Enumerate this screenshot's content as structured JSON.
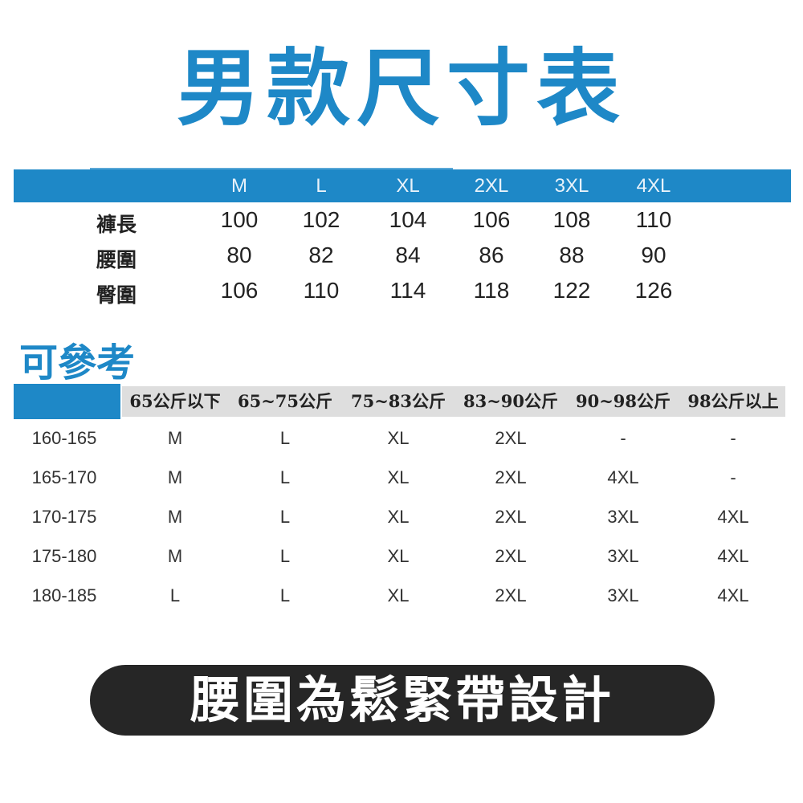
{
  "title": "男款尺寸表",
  "size_table": {
    "sizes": [
      "M",
      "L",
      "XL",
      "2XL",
      "3XL",
      "4XL"
    ],
    "rows": [
      {
        "label": "褲長",
        "values": [
          "100",
          "102",
          "104",
          "106",
          "108",
          "110"
        ]
      },
      {
        "label": "腰圍",
        "values": [
          "80",
          "82",
          "84",
          "86",
          "88",
          "90"
        ]
      },
      {
        "label": "臀圍",
        "values": [
          "106",
          "110",
          "114",
          "118",
          "122",
          "126"
        ]
      }
    ]
  },
  "reference": {
    "title": "可參考",
    "weights": [
      "65公斤以下",
      "65~75公斤",
      "75~83公斤",
      "83~90公斤",
      "90~98公斤",
      "98公斤以上"
    ],
    "rows": [
      {
        "height": "160-165",
        "sizes": [
          "M",
          "L",
          "XL",
          "2XL",
          "-",
          "-"
        ]
      },
      {
        "height": "165-170",
        "sizes": [
          "M",
          "L",
          "XL",
          "2XL",
          "4XL",
          "-"
        ]
      },
      {
        "height": "170-175",
        "sizes": [
          "M",
          "L",
          "XL",
          "2XL",
          "3XL",
          "4XL"
        ]
      },
      {
        "height": "175-180",
        "sizes": [
          "M",
          "L",
          "XL",
          "2XL",
          "3XL",
          "4XL"
        ]
      },
      {
        "height": "180-185",
        "sizes": [
          "L",
          "L",
          "XL",
          "2XL",
          "3XL",
          "4XL"
        ]
      }
    ]
  },
  "note": "腰圍為鬆緊帶設計",
  "colors": {
    "accent": "#1e88c7",
    "header_gray": "#dedede",
    "pill": "#262626"
  }
}
